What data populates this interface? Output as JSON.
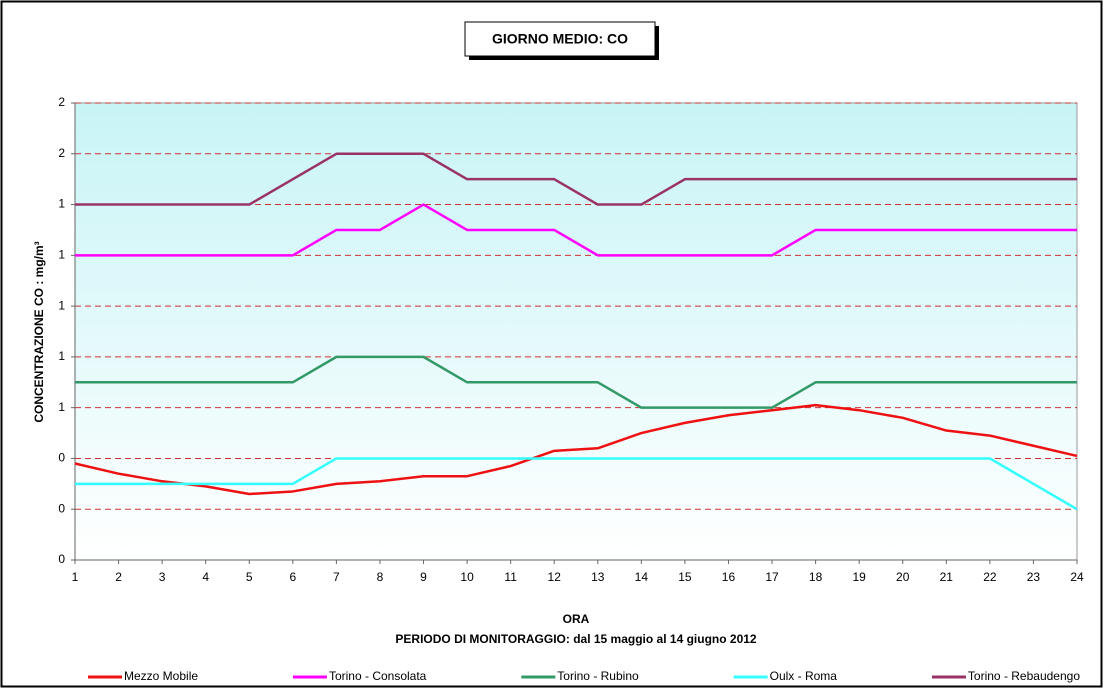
{
  "chart_data": {
    "type": "line",
    "title": "GIORNO MEDIO: CO",
    "x_label": "ORA",
    "subtitle": "PERIODO DI MONITORAGGIO: dal 15 maggio al 14 giugno 2012",
    "y_label": "CONCENTRAZIONE CO :  mg/m³",
    "x": [
      1,
      2,
      3,
      4,
      5,
      6,
      7,
      8,
      9,
      10,
      11,
      12,
      13,
      14,
      15,
      16,
      17,
      18,
      19,
      20,
      21,
      22,
      23,
      24
    ],
    "xlim": [
      1,
      24
    ],
    "xticks": [
      1,
      2,
      3,
      4,
      5,
      6,
      7,
      8,
      9,
      10,
      11,
      12,
      13,
      14,
      15,
      16,
      17,
      18,
      19,
      20,
      21,
      22,
      23,
      24
    ],
    "ylim": [
      0,
      1.8
    ],
    "yticks": [
      {
        "value": 0,
        "label": "0"
      },
      {
        "value": 0.2,
        "label": "0"
      },
      {
        "value": 0.4,
        "label": "0"
      },
      {
        "value": 0.6,
        "label": "1"
      },
      {
        "value": 0.8,
        "label": "1"
      },
      {
        "value": 1.0,
        "label": "1"
      },
      {
        "value": 1.2,
        "label": "1"
      },
      {
        "value": 1.4,
        "label": "1"
      },
      {
        "value": 1.6,
        "label": "2"
      },
      {
        "value": 1.8,
        "label": "2"
      }
    ],
    "grid": true,
    "legend": "bottom",
    "series": [
      {
        "name": "Mezzo Mobile",
        "color": "#ee1111",
        "values": [
          0.38,
          0.34,
          0.31,
          0.29,
          0.26,
          0.27,
          0.3,
          0.31,
          0.33,
          0.33,
          0.37,
          0.43,
          0.44,
          0.5,
          0.54,
          0.57,
          0.59,
          0.61,
          0.59,
          0.56,
          0.51,
          0.49,
          0.45,
          0.41
        ]
      },
      {
        "name": "Torino - Consolata",
        "color": "#ff00ff",
        "values": [
          1.2,
          1.2,
          1.2,
          1.2,
          1.2,
          1.2,
          1.3,
          1.3,
          1.4,
          1.3,
          1.3,
          1.3,
          1.2,
          1.2,
          1.2,
          1.2,
          1.2,
          1.3,
          1.3,
          1.3,
          1.3,
          1.3,
          1.3,
          1.3
        ]
      },
      {
        "name": "Torino - Rubino",
        "color": "#339966",
        "values": [
          0.7,
          0.7,
          0.7,
          0.7,
          0.7,
          0.7,
          0.8,
          0.8,
          0.8,
          0.7,
          0.7,
          0.7,
          0.7,
          0.6,
          0.6,
          0.6,
          0.6,
          0.7,
          0.7,
          0.7,
          0.7,
          0.7,
          0.7,
          0.7
        ]
      },
      {
        "name": "Oulx - Roma",
        "color": "#33ffff",
        "values": [
          0.3,
          0.3,
          0.3,
          0.3,
          0.3,
          0.3,
          0.4,
          0.4,
          0.4,
          0.4,
          0.4,
          0.4,
          0.4,
          0.4,
          0.4,
          0.4,
          0.4,
          0.4,
          0.4,
          0.4,
          0.4,
          0.4,
          0.3,
          0.2
        ]
      },
      {
        "name": "Torino - Rebaudengo",
        "color": "#993366",
        "values": [
          1.4,
          1.4,
          1.4,
          1.4,
          1.4,
          1.5,
          1.6,
          1.6,
          1.6,
          1.5,
          1.5,
          1.5,
          1.4,
          1.4,
          1.5,
          1.5,
          1.5,
          1.5,
          1.5,
          1.5,
          1.5,
          1.5,
          1.5,
          1.5
        ]
      }
    ]
  }
}
